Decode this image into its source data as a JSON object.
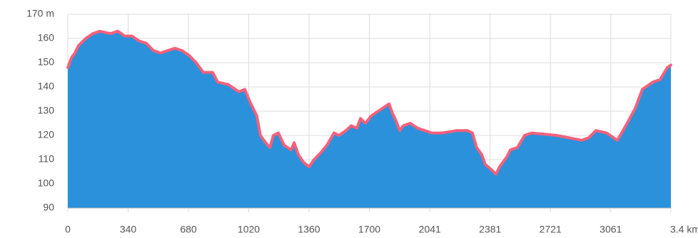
{
  "chart_data": {
    "type": "area",
    "x": [
      0,
      20,
      40,
      60,
      101,
      141,
      181,
      241,
      282,
      322,
      362,
      402,
      443,
      483,
      523,
      563,
      604,
      644,
      684,
      724,
      764,
      817,
      845,
      905,
      965,
      998,
      1026,
      1066,
      1086,
      1115,
      1139,
      1159,
      1187,
      1219,
      1259,
      1276,
      1300,
      1328,
      1360,
      1388,
      1428,
      1461,
      1501,
      1529,
      1569,
      1597,
      1630,
      1650,
      1678,
      1710,
      1750,
      1791,
      1811,
      1831,
      1851,
      1871,
      1891,
      1931,
      1972,
      2012,
      2052,
      2112,
      2193,
      2253,
      2281,
      2305,
      2334,
      2354,
      2386,
      2414,
      2434,
      2474,
      2495,
      2535,
      2575,
      2615,
      2756,
      2897,
      2937,
      2977,
      3038,
      3098,
      3138,
      3198,
      3239,
      3299,
      3339,
      3380,
      3400
    ],
    "values": [
      148,
      152,
      154,
      157,
      160,
      162,
      163,
      162,
      163,
      161,
      161,
      159,
      158,
      155,
      154,
      155,
      156,
      155,
      153,
      150,
      146,
      146,
      142,
      141,
      138,
      139,
      134,
      128,
      120,
      117,
      115,
      120,
      121,
      116,
      114,
      117,
      112,
      109,
      107,
      110,
      113,
      116,
      121,
      120,
      122,
      124,
      123,
      127,
      125,
      128,
      130,
      132,
      133,
      129,
      126,
      122,
      124,
      125,
      123,
      122,
      121,
      121,
      122,
      122,
      121,
      115,
      112,
      108,
      106,
      104,
      107,
      111,
      114,
      115,
      120,
      121,
      120,
      118,
      119,
      122,
      121,
      118,
      123,
      131,
      139,
      142,
      143,
      148,
      149
    ],
    "color": "#2b91db",
    "line_color": "#f4617c",
    "xlim": [
      0,
      3400
    ],
    "xticks": [
      0,
      340,
      680,
      1020,
      1360,
      1700,
      2041,
      2381,
      2721,
      3061,
      {
        "value": 3400,
        "label": "3.4 km"
      }
    ],
    "ylim": [
      90,
      170
    ],
    "yticks": [
      90,
      100,
      110,
      120,
      130,
      140,
      150,
      160,
      {
        "value": 170,
        "label": "170 m"
      }
    ],
    "grid": true
  }
}
